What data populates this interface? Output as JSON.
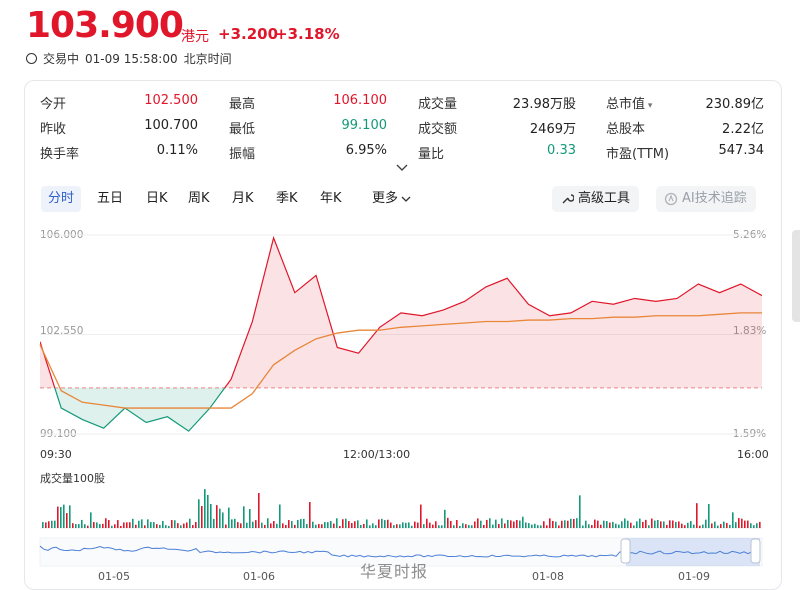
{
  "header": {
    "price": "103.900",
    "currency": "港元",
    "change": "+3.200",
    "change_pct": "+3.18%",
    "status": "交易中",
    "datetime": "01-09 15:58:00",
    "timezone": "北京时间"
  },
  "quote_table": [
    {
      "label": "今开",
      "value": "102.500",
      "color": "red"
    },
    {
      "label": "最高",
      "value": "106.100",
      "color": "red"
    },
    {
      "label": "成交量",
      "value": "23.98万股",
      "color": "black"
    },
    {
      "label": "总市值",
      "value": "230.89亿",
      "color": "black"
    },
    {
      "label": "昨收",
      "value": "100.700",
      "color": "black"
    },
    {
      "label": "最低",
      "value": "99.100",
      "color": "green"
    },
    {
      "label": "成交额",
      "value": "2469万",
      "color": "black"
    },
    {
      "label": "总股本",
      "value": "2.22亿",
      "color": "black"
    },
    {
      "label": "换手率",
      "value": "0.11%",
      "color": "black"
    },
    {
      "label": "振幅",
      "value": "6.95%",
      "color": "black"
    },
    {
      "label": "量比",
      "value": "0.33",
      "color": "green"
    },
    {
      "label": "市盈(TTM)",
      "value": "547.34",
      "color": "black"
    }
  ],
  "tabs": [
    "分时",
    "五日",
    "日K",
    "周K",
    "月K",
    "季K",
    "年K",
    "更多"
  ],
  "active_tab": "分时",
  "tools": {
    "advanced": "高级工具",
    "ai": "AI技术追踪"
  },
  "price_axis": {
    "top": "106.000",
    "mid": "102.550",
    "bottom": "99.100"
  },
  "pct_axis": {
    "top": "5.26%",
    "mid": "1.83%",
    "bottom": "-1.59%"
  },
  "time_axis": {
    "start": "09:30",
    "mid": "12:00/13:00",
    "end": "16:00"
  },
  "volume_label": "成交量100股",
  "navigator_dates": [
    "01-05",
    "01-06",
    "01-08",
    "01-09"
  ],
  "watermark": "华夏时报",
  "colors": {
    "up": "#e0162b",
    "down": "#13997a",
    "avg": "#e8863a",
    "nav": "#4a7fd6"
  },
  "chart_data": {
    "type": "line",
    "title": "",
    "xlabel": "",
    "ylabel": "",
    "ylim": [
      99.1,
      106.0
    ],
    "prev_close": 100.7,
    "x": [
      "09:30",
      "09:40",
      "09:50",
      "10:00",
      "10:10",
      "10:20",
      "10:30",
      "10:40",
      "10:50",
      "11:00",
      "11:10",
      "11:20",
      "11:30",
      "11:40",
      "11:50",
      "12:00",
      "13:00",
      "13:10",
      "13:20",
      "13:30",
      "13:40",
      "13:50",
      "14:00",
      "14:10",
      "14:20",
      "14:30",
      "14:40",
      "14:50",
      "15:00",
      "15:10",
      "15:20",
      "15:30",
      "15:40",
      "15:50",
      "16:00"
    ],
    "series": [
      {
        "values": [
          102.3,
          100.0,
          99.6,
          99.3,
          100.0,
          99.5,
          99.7,
          99.2,
          100.0,
          101.0,
          103.0,
          105.9,
          104.0,
          104.6,
          102.1,
          101.9,
          102.8,
          103.3,
          103.2,
          103.4,
          103.7,
          104.2,
          104.5,
          103.6,
          103.2,
          103.3,
          103.7,
          103.6,
          103.8,
          103.7,
          103.8,
          104.3,
          104.0,
          104.3,
          103.9
        ]
      },
      {
        "values": [
          102.2,
          100.6,
          100.2,
          100.1,
          100.0,
          100.0,
          100.0,
          100.0,
          100.0,
          100.0,
          100.5,
          101.5,
          102.0,
          102.4,
          102.6,
          102.7,
          102.7,
          102.8,
          102.85,
          102.9,
          102.95,
          103.0,
          103.0,
          103.05,
          103.05,
          103.1,
          103.1,
          103.15,
          103.15,
          103.2,
          103.2,
          103.2,
          103.25,
          103.3,
          103.3
        ]
      }
    ]
  }
}
